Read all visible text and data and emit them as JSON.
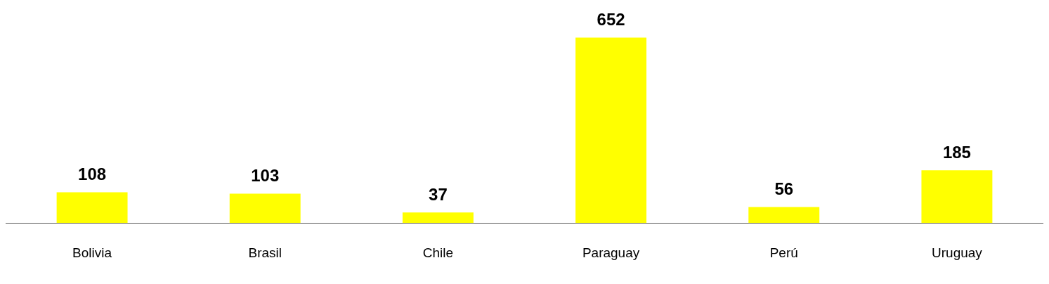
{
  "chart_data": {
    "type": "bar",
    "categories": [
      "Bolivia",
      "Brasil",
      "Chile",
      "Paraguay",
      "Perú",
      "Uruguay"
    ],
    "values": [
      108,
      103,
      37,
      652,
      56,
      185
    ],
    "color": "#ffff00",
    "data_labels": true,
    "grid": false,
    "legend": false
  }
}
